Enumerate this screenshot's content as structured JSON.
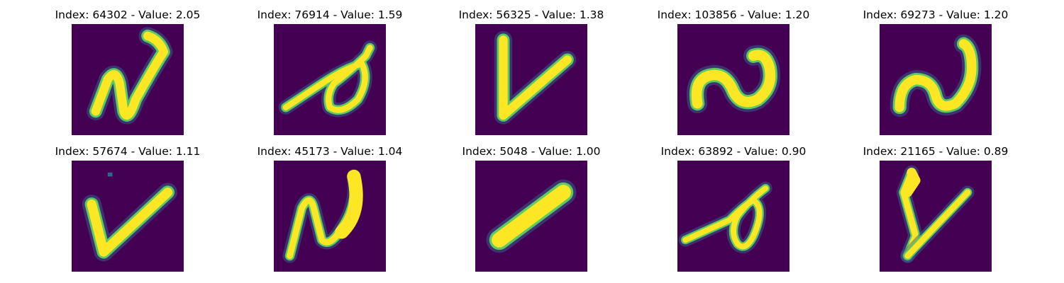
{
  "colors": {
    "background_cell": "#440154",
    "stroke_edge": "#21918c",
    "stroke_mid": "#5ec962",
    "stroke_core": "#fde725",
    "halo": "#31688e"
  },
  "panels": [
    {
      "title": "Index: 64302 - Value: 2.05"
    },
    {
      "title": "Index: 76914 - Value: 1.59"
    },
    {
      "title": "Index: 56325 - Value: 1.38"
    },
    {
      "title": "Index: 103856 - Value: 1.20"
    },
    {
      "title": "Index: 69273 - Value: 1.20"
    },
    {
      "title": "Index: 57674 - Value: 1.11"
    },
    {
      "title": "Index: 45173 - Value: 1.04"
    },
    {
      "title": "Index: 5048 - Value: 1.00"
    },
    {
      "title": "Index: 63892 - Value: 0.90"
    },
    {
      "title": "Index: 21165 - Value: 0.89"
    }
  ]
}
